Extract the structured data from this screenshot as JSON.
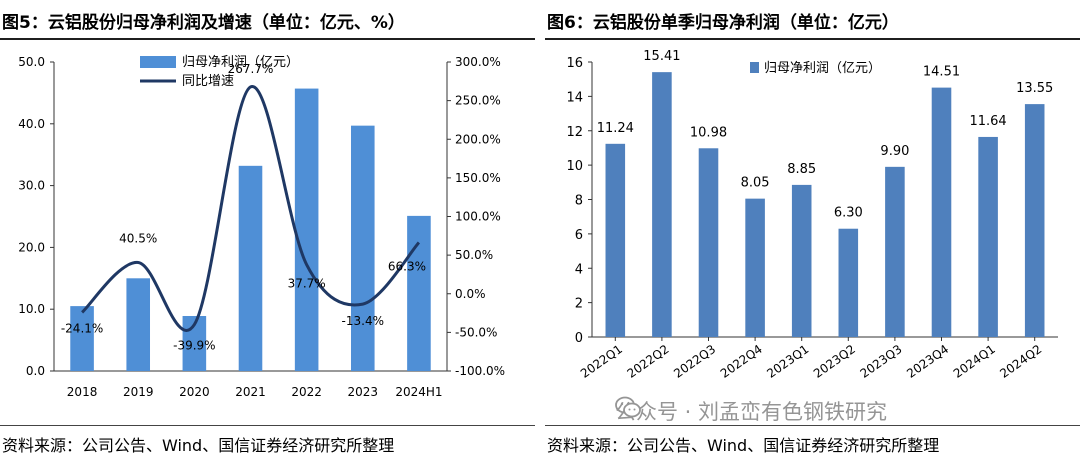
{
  "left": {
    "title": "图5：云铝股份归母净利润及增速（单位：亿元、%）",
    "source": "资料来源：公司公告、Wind、国信证券经济研究所整理"
  },
  "right": {
    "title": "图6：云铝股份单季归母净利润（单位：亿元）",
    "source": "资料来源：公司公告、Wind、国信证券经济研究所整理"
  },
  "watermark": "公众号 · 刘孟峦有色钢铁研究",
  "colors": {
    "bar": "#4f8fd6",
    "bar_right": "#4f80bd",
    "line": "#1f3864"
  },
  "chart_data": [
    {
      "type": "bar+line",
      "categories": [
        "2018",
        "2019",
        "2020",
        "2021",
        "2022",
        "2023",
        "2024H1"
      ],
      "series": [
        {
          "name": "归母净利润（亿元）",
          "type": "bar",
          "axis": "left",
          "values": [
            10.5,
            15.0,
            8.9,
            33.2,
            45.7,
            39.7,
            25.1
          ]
        },
        {
          "name": "同比增速",
          "type": "line",
          "axis": "right",
          "smooth": true,
          "values": [
            -24.1,
            40.5,
            -39.9,
            267.7,
            37.7,
            -13.4,
            66.3
          ],
          "labels": [
            "-24.1%",
            "40.5%",
            "-39.9%",
            "267.7%",
            "37.7%",
            "-13.4%",
            "66.3%"
          ]
        }
      ],
      "ylim": [
        0,
        50
      ],
      "yticks": [
        "0.0",
        "10.0",
        "20.0",
        "30.0",
        "40.0",
        "50.0"
      ],
      "y2lim": [
        -100,
        300
      ],
      "y2ticks": [
        "-100.0%",
        "-50.0%",
        "0.0%",
        "50.0%",
        "100.0%",
        "150.0%",
        "200.0%",
        "250.0%",
        "300.0%"
      ],
      "legend": "top-center",
      "grid": false
    },
    {
      "type": "bar",
      "categories": [
        "2022Q1",
        "2022Q2",
        "2022Q3",
        "2022Q4",
        "2023Q1",
        "2023Q2",
        "2023Q3",
        "2023Q4",
        "2024Q1",
        "2024Q2"
      ],
      "series": [
        {
          "name": "归母净利润（亿元）",
          "values": [
            11.24,
            15.41,
            10.98,
            8.05,
            8.85,
            6.3,
            9.9,
            14.51,
            11.64,
            13.55
          ],
          "labels": [
            "11.24",
            "15.41",
            "10.98",
            "8.05",
            "8.85",
            "6.30",
            "9.90",
            "14.51",
            "11.64",
            "13.55"
          ]
        }
      ],
      "ylim": [
        0,
        16
      ],
      "yticks": [
        "0",
        "2",
        "4",
        "6",
        "8",
        "10",
        "12",
        "14",
        "16"
      ],
      "legend": "top-right",
      "grid": false
    }
  ]
}
